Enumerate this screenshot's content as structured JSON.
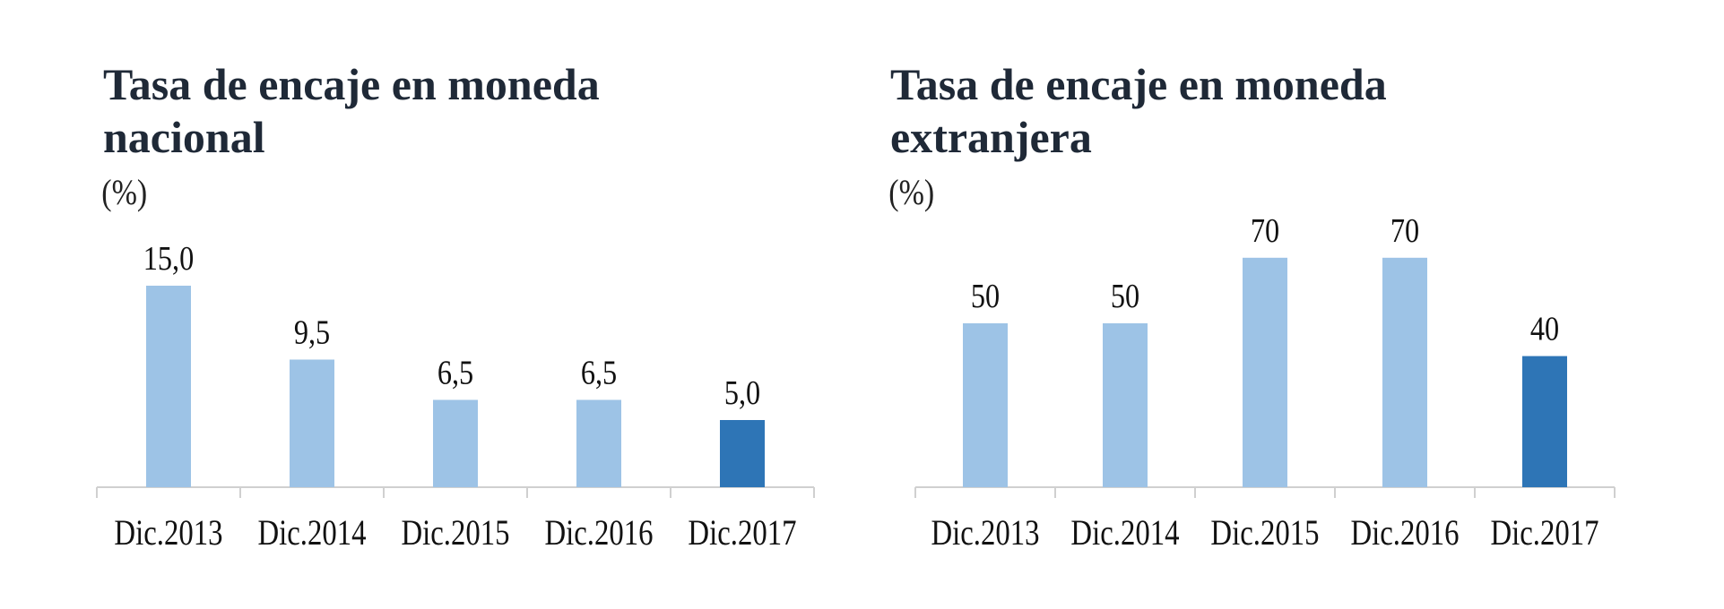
{
  "colors": {
    "bar": "#9DC3E6",
    "highlight": "#2E75B6",
    "axis": "#D0D0D0",
    "title": "#1F2937"
  },
  "chart_data": [
    {
      "type": "bar",
      "title": [
        "Tasa de encaje en moneda",
        "nacional"
      ],
      "unit": "(%)",
      "categories": [
        "Dic.2013",
        "Dic.2014",
        "Dic.2015",
        "Dic.2016",
        "Dic.2017"
      ],
      "values": [
        15.0,
        9.5,
        6.5,
        6.5,
        5.0
      ],
      "value_labels": [
        "15,0",
        "9,5",
        "6,5",
        "6,5",
        "5,0"
      ],
      "highlight_index": 4,
      "ylim": [
        0,
        15
      ],
      "grid": false,
      "legend": "none"
    },
    {
      "type": "bar",
      "title": [
        "Tasa de encaje en moneda",
        "extranjera"
      ],
      "unit": "(%)",
      "categories": [
        "Dic.2013",
        "Dic.2014",
        "Dic.2015",
        "Dic.2016",
        "Dic.2017"
      ],
      "values": [
        50,
        50,
        70,
        70,
        40
      ],
      "value_labels": [
        "50",
        "50",
        "70",
        "70",
        "40"
      ],
      "highlight_index": 4,
      "ylim": [
        0,
        70
      ],
      "grid": false,
      "legend": "none"
    }
  ]
}
